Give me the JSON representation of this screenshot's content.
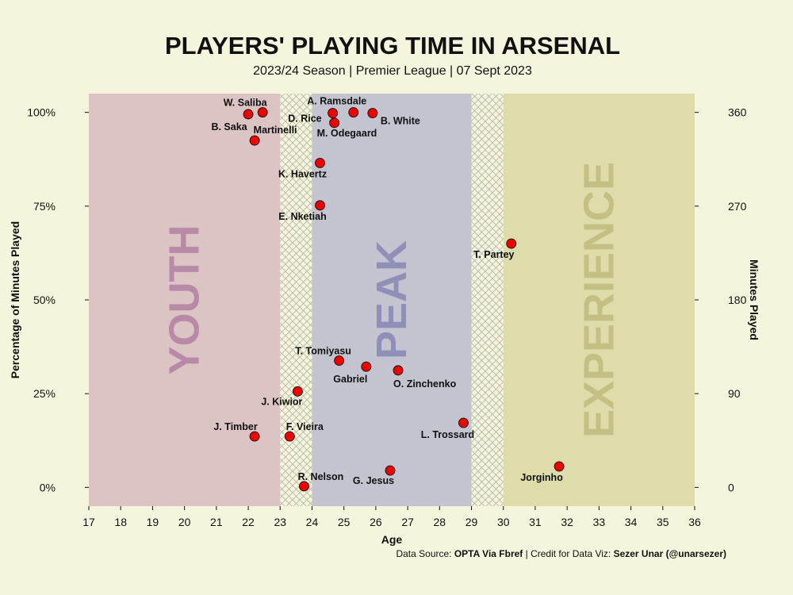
{
  "chart_data": {
    "type": "scatter",
    "title": "PLAYERS' PLAYING TIME IN ARSENAL",
    "subtitle": "2023/24 Season | Premier League | 07 Sept 2023",
    "xlabel": "Age",
    "ylabel_left": "Percentage of Minutes Played",
    "ylabel_right": "Minutes Played",
    "xlim": [
      17,
      36
    ],
    "xticks": [
      17,
      18,
      19,
      20,
      21,
      22,
      23,
      24,
      25,
      26,
      27,
      28,
      29,
      30,
      31,
      32,
      33,
      34,
      35,
      36
    ],
    "ylim": [
      -0.05,
      1.05
    ],
    "yticks_left": [
      {
        "value": 0,
        "label": "0%"
      },
      {
        "value": 0.25,
        "label": "25%"
      },
      {
        "value": 0.5,
        "label": "50%"
      },
      {
        "value": 0.75,
        "label": "75%"
      },
      {
        "value": 1,
        "label": "100%"
      }
    ],
    "yticks_right": [
      {
        "value": 0,
        "label": "0"
      },
      {
        "value": 0.25,
        "label": "90"
      },
      {
        "value": 0.5,
        "label": "180"
      },
      {
        "value": 0.75,
        "label": "270"
      },
      {
        "value": 1,
        "label": "360"
      }
    ],
    "zones": [
      {
        "label": "YOUTH",
        "x0": 17,
        "x1": 23,
        "fill": "#dcc4c5",
        "text_color": "#b98aa8"
      },
      {
        "label": "",
        "x0": 23,
        "x1": 24,
        "fill": "hatch"
      },
      {
        "label": "PEAK",
        "x0": 24,
        "x1": 29,
        "fill": "#c3c4cf",
        "text_color": "#8f8fba"
      },
      {
        "label": "",
        "x0": 29,
        "x1": 30,
        "fill": "hatch"
      },
      {
        "label": "EXPERIENCE",
        "x0": 30,
        "x1": 36,
        "fill": "#dfdcab",
        "text_color": "#c4c083"
      }
    ],
    "point_color": "#ee0000",
    "points": [
      {
        "name": "W. Saliba",
        "x": 22.45,
        "y": 1.0
      },
      {
        "name": "B. Saka",
        "x": 22.0,
        "y": 0.995
      },
      {
        "name": "Martinelli",
        "x": 22.2,
        "y": 0.925
      },
      {
        "name": "A. Ramsdale",
        "x": 25.3,
        "y": 1.0
      },
      {
        "name": "D. Rice",
        "x": 24.65,
        "y": 0.998
      },
      {
        "name": "B. White",
        "x": 25.9,
        "y": 0.998
      },
      {
        "name": "M. Odegaard",
        "x": 24.7,
        "y": 0.972
      },
      {
        "name": "K. Havertz",
        "x": 24.25,
        "y": 0.865
      },
      {
        "name": "E. Nketiah",
        "x": 24.25,
        "y": 0.752
      },
      {
        "name": "T. Partey",
        "x": 30.25,
        "y": 0.65
      },
      {
        "name": "T. Tomiyasu",
        "x": 24.85,
        "y": 0.338
      },
      {
        "name": "Gabriel",
        "x": 25.7,
        "y": 0.322
      },
      {
        "name": "O. Zinchenko",
        "x": 26.7,
        "y": 0.312
      },
      {
        "name": "J. Kiwior",
        "x": 23.55,
        "y": 0.256
      },
      {
        "name": "L. Trossard",
        "x": 28.75,
        "y": 0.172
      },
      {
        "name": "J. Timber",
        "x": 22.2,
        "y": 0.136
      },
      {
        "name": "F. Vieira",
        "x": 23.3,
        "y": 0.136
      },
      {
        "name": "Jorginho",
        "x": 31.75,
        "y": 0.056
      },
      {
        "name": "G. Jesus",
        "x": 26.45,
        "y": 0.045
      },
      {
        "name": "R. Nelson",
        "x": 23.75,
        "y": 0.003
      }
    ]
  },
  "source": {
    "prefix": "Data Source: ",
    "source_bold": "OPTA Via Fbref",
    "middle": " | Credit for Data Viz: ",
    "credit_bold": "Sezer Unar (@unarsezer)"
  }
}
